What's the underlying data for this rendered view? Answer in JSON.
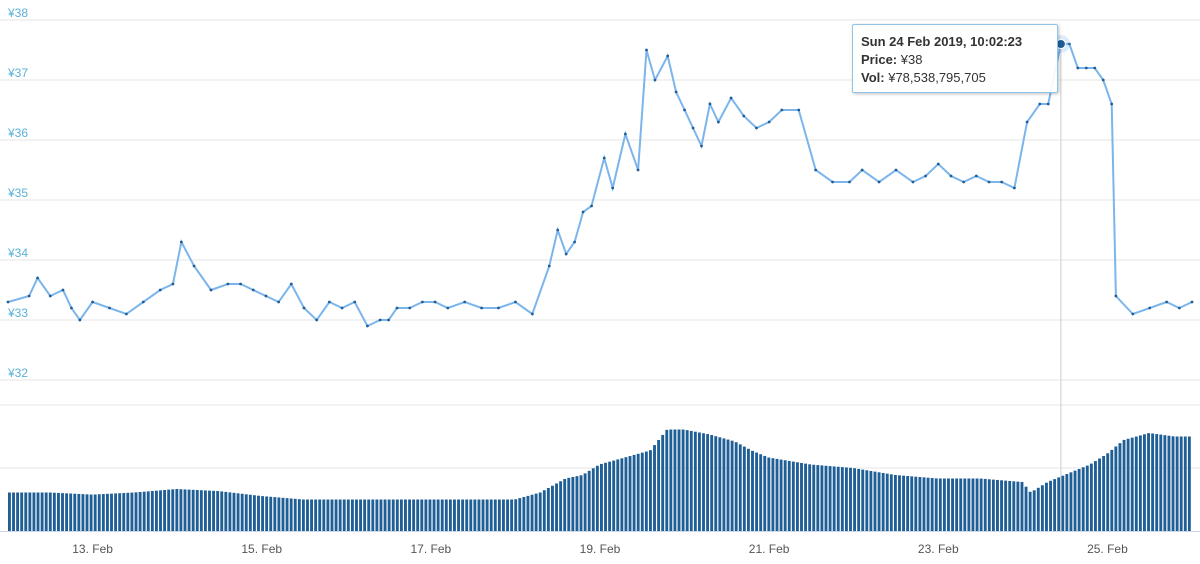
{
  "colors": {
    "line": "#7cb5ec",
    "bar": "#1f5f96",
    "grid": "#e6e6e6",
    "y_label": "#5bb0d8",
    "crosshair": "#cccccc",
    "marker": "#1f5f96"
  },
  "tooltip": {
    "date": "Sun 24 Feb 2019, 10:02:23",
    "price_label": "Price:",
    "price_value": "¥38",
    "vol_label": "Vol:",
    "vol_value": "¥78,538,795,705"
  },
  "chart_data": [
    {
      "type": "line",
      "y_ticks": [
        "¥38",
        "¥37",
        "¥36",
        "¥35",
        "¥34",
        "¥33",
        "¥32"
      ],
      "ylim": [
        32,
        38
      ],
      "x_ticks": [
        "13. Feb",
        "15. Feb",
        "17. Feb",
        "19. Feb",
        "21. Feb",
        "23. Feb",
        "25. Feb"
      ],
      "x_tick_days": [
        13,
        15,
        17,
        19,
        21,
        23,
        25
      ],
      "xlim_days": [
        12.0,
        26.0
      ],
      "grid": true,
      "series": [
        {
          "x": [
            12.0,
            12.25,
            12.35,
            12.5,
            12.65,
            12.75,
            12.85,
            13.0,
            13.2,
            13.4,
            13.6,
            13.8,
            13.95,
            14.05,
            14.2,
            14.4,
            14.6,
            14.75,
            14.9,
            15.05,
            15.2,
            15.35,
            15.5,
            15.65,
            15.8,
            15.95,
            16.1,
            16.25,
            16.4,
            16.5,
            16.6,
            16.75,
            16.9,
            17.05,
            17.2,
            17.4,
            17.6,
            17.8,
            18.0,
            18.2,
            18.4,
            18.5,
            18.6,
            18.7,
            18.8,
            18.9,
            19.05,
            19.15,
            19.3,
            19.45,
            19.55,
            19.65,
            19.8,
            19.9,
            20.0,
            20.1,
            20.2,
            20.3,
            20.4,
            20.55,
            20.7,
            20.85,
            21.0,
            21.15,
            21.35,
            21.55,
            21.75,
            21.95,
            22.1,
            22.3,
            22.5,
            22.7,
            22.85,
            23.0,
            23.15,
            23.3,
            23.45,
            23.6,
            23.75,
            23.9,
            24.05,
            24.2,
            24.3,
            24.45,
            24.55,
            24.65,
            24.75,
            24.85,
            24.95,
            25.05,
            25.1,
            25.3,
            25.5,
            25.7,
            25.85,
            26.0
          ],
          "y": [
            33.3,
            33.4,
            33.7,
            33.4,
            33.5,
            33.2,
            33.0,
            33.3,
            33.2,
            33.1,
            33.3,
            33.5,
            33.6,
            34.3,
            33.9,
            33.5,
            33.6,
            33.6,
            33.5,
            33.4,
            33.3,
            33.6,
            33.2,
            33.0,
            33.3,
            33.2,
            33.3,
            32.9,
            33.0,
            33.0,
            33.2,
            33.2,
            33.3,
            33.3,
            33.2,
            33.3,
            33.2,
            33.2,
            33.3,
            33.1,
            33.9,
            34.5,
            34.1,
            34.3,
            34.8,
            34.9,
            35.7,
            35.2,
            36.1,
            35.5,
            37.5,
            37.0,
            37.4,
            36.8,
            36.5,
            36.2,
            35.9,
            36.6,
            36.3,
            36.7,
            36.4,
            36.2,
            36.3,
            36.5,
            36.5,
            35.5,
            35.3,
            35.3,
            35.5,
            35.3,
            35.5,
            35.3,
            35.4,
            35.6,
            35.4,
            35.3,
            35.4,
            35.3,
            35.3,
            35.2,
            36.3,
            36.6,
            36.6,
            37.6,
            37.6,
            37.2,
            37.2,
            37.2,
            37.0,
            36.6,
            33.4,
            33.1,
            33.2,
            33.3,
            33.2,
            33.3
          ]
        }
      ]
    },
    {
      "type": "bar",
      "series": [
        {
          "name": "Vol",
          "x": [
            12.0,
            12.5,
            13.0,
            13.5,
            14.0,
            14.5,
            15.0,
            15.5,
            16.0,
            16.5,
            17.0,
            17.5,
            18.0,
            18.3,
            18.6,
            18.8,
            19.0,
            19.3,
            19.6,
            19.8,
            20.0,
            20.3,
            20.6,
            20.8,
            21.0,
            21.5,
            22.0,
            22.5,
            23.0,
            23.5,
            24.0,
            24.1,
            24.3,
            24.5,
            24.8,
            25.0,
            25.2,
            25.5,
            25.8,
            26.0
          ],
          "y": [
            0.55,
            0.55,
            0.52,
            0.55,
            0.6,
            0.57,
            0.5,
            0.45,
            0.45,
            0.45,
            0.45,
            0.45,
            0.45,
            0.55,
            0.75,
            0.8,
            0.95,
            1.05,
            1.15,
            1.45,
            1.45,
            1.38,
            1.28,
            1.15,
            1.05,
            0.95,
            0.9,
            0.8,
            0.75,
            0.75,
            0.7,
            0.55,
            0.7,
            0.8,
            0.95,
            1.1,
            1.3,
            1.4,
            1.35,
            1.35
          ]
        }
      ]
    }
  ]
}
